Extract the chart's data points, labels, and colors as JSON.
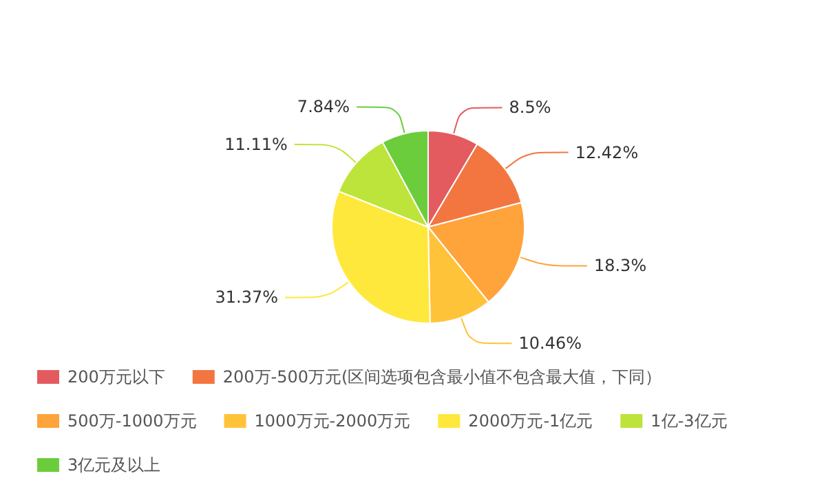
{
  "chart_data": {
    "type": "pie",
    "categories": [
      "200万元以下",
      "200万-500万元(区间选项包含最小值不包含最大值，下同）",
      "500万-1000万元",
      "1000万元-2000万元",
      "2000万元-1亿元",
      "1亿-3亿元",
      "3亿元及以上"
    ],
    "values": [
      8.5,
      12.42,
      18.3,
      10.46,
      31.37,
      11.11,
      7.84
    ],
    "value_labels": [
      "8.5%",
      "12.42%",
      "18.3%",
      "10.46%",
      "31.37%",
      "11.11%",
      "7.84%"
    ],
    "colors": [
      "#e35b5f",
      "#f37640",
      "#ffa33b",
      "#ffc33a",
      "#ffe83c",
      "#bde43a",
      "#6ccd3c"
    ],
    "legend": "bottom"
  }
}
